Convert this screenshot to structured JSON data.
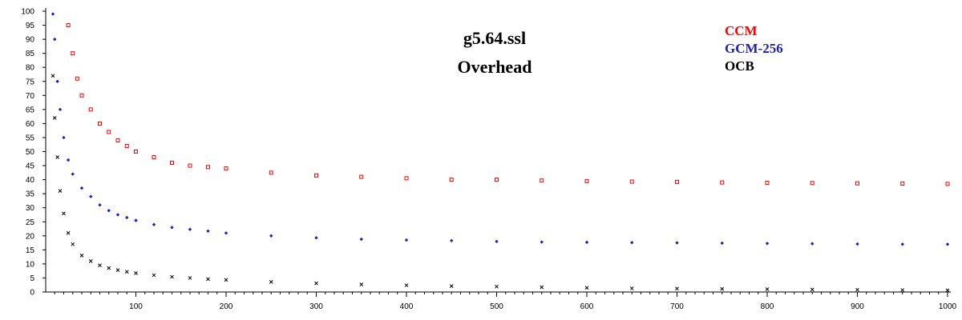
{
  "chart_data": {
    "type": "scatter",
    "title": "g5.64.ssl",
    "subtitle": "Overhead",
    "xlabel": "",
    "ylabel": "",
    "xlim": [
      0,
      1000
    ],
    "ylim": [
      0,
      100
    ],
    "x_ticks": [
      100,
      200,
      300,
      400,
      500,
      600,
      700,
      800,
      900,
      1000
    ],
    "y_ticks": [
      0,
      5,
      10,
      15,
      20,
      25,
      30,
      35,
      40,
      45,
      50,
      55,
      60,
      65,
      70,
      75,
      80,
      85,
      90,
      95,
      100
    ],
    "grid": false,
    "legend_position": "top-right",
    "series": [
      {
        "name": "CCM",
        "color": "#ff0000",
        "marker": "square",
        "x": [
          25,
          30,
          35,
          40,
          50,
          60,
          70,
          80,
          90,
          100,
          120,
          140,
          160,
          180,
          200,
          250,
          300,
          350,
          400,
          450,
          500,
          550,
          600,
          650,
          700,
          750,
          800,
          850,
          900,
          950,
          1000
        ],
        "y": [
          95,
          85,
          76,
          70,
          65,
          60,
          57,
          54,
          52,
          50,
          48,
          46,
          45,
          44.5,
          44,
          42.5,
          41.5,
          41,
          40.5,
          40,
          40,
          39.7,
          39.5,
          39.3,
          39.2,
          39,
          38.9,
          38.8,
          38.7,
          38.6,
          38.5
        ]
      },
      {
        "name": "GCM-256",
        "color": "#2020c0",
        "marker": "diamond",
        "x": [
          8,
          10,
          13,
          16,
          20,
          25,
          30,
          40,
          50,
          60,
          70,
          80,
          90,
          100,
          120,
          140,
          160,
          180,
          200,
          250,
          300,
          350,
          400,
          450,
          500,
          550,
          600,
          650,
          700,
          750,
          800,
          850,
          900,
          950,
          1000
        ],
        "y": [
          99,
          90,
          75,
          65,
          55,
          47,
          42,
          37,
          34,
          31,
          29,
          27.5,
          26.5,
          25.5,
          24,
          23,
          22.3,
          21.7,
          21,
          20,
          19.3,
          18.8,
          18.5,
          18.3,
          18,
          17.8,
          17.7,
          17.6,
          17.5,
          17.4,
          17.3,
          17.2,
          17.1,
          17,
          17
        ]
      },
      {
        "name": "OCB",
        "color": "#000000",
        "marker": "x",
        "x": [
          8,
          10,
          13,
          16,
          20,
          25,
          30,
          40,
          50,
          60,
          70,
          80,
          90,
          100,
          120,
          140,
          160,
          180,
          200,
          250,
          300,
          350,
          400,
          450,
          500,
          550,
          600,
          650,
          700,
          750,
          800,
          850,
          900,
          950,
          1000
        ],
        "y": [
          77,
          62,
          48,
          36,
          28,
          21,
          17,
          13,
          11,
          9.5,
          8.5,
          7.8,
          7.2,
          6.7,
          6,
          5.4,
          5,
          4.6,
          4.3,
          3.6,
          3.1,
          2.7,
          2.4,
          2.1,
          1.9,
          1.7,
          1.5,
          1.3,
          1.2,
          1.1,
          1,
          0.9,
          0.8,
          0.7,
          0.6
        ]
      }
    ]
  }
}
